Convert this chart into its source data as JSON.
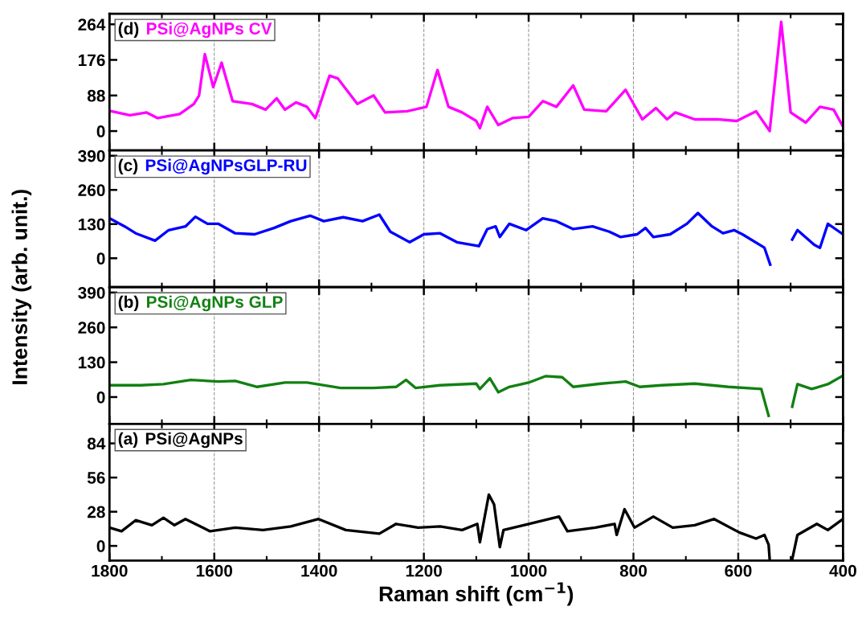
{
  "chart_data": [
    {
      "type": "line",
      "ylabel": "Intensity (arb. unit.)",
      "annotations": [
        "(d)"
      ],
      "xlim": [
        1800,
        400
      ],
      "xticks": [
        1800,
        1600,
        1400,
        1200,
        1000,
        800,
        600,
        400
      ],
      "ylim": [
        -48,
        290
      ],
      "yticks": [
        0,
        88,
        176,
        264
      ],
      "grid": "x",
      "tick_labels": "y",
      "series": [
        {
          "name": "PSi@AgNPs CV",
          "color": "#ff00ff",
          "x": [
            1800,
            1761,
            1729,
            1708,
            1666,
            1639,
            1629,
            1618,
            1602,
            1586,
            1565,
            1528,
            1502,
            1481,
            1465,
            1444,
            1423,
            1407,
            1380,
            1364,
            1327,
            1296,
            1274,
            1232,
            1195,
            1174,
            1153,
            1127,
            1100,
            1093,
            1079,
            1058,
            1031,
            1000,
            973,
            947,
            915,
            894,
            852,
            815,
            783,
            757,
            736,
            720,
            683,
            640,
            603,
            566,
            540,
            518,
            500,
            471,
            444,
            418,
            400
          ],
          "values": [
            50,
            39,
            46,
            32,
            42,
            67,
            88,
            190,
            109,
            169,
            74,
            67,
            53,
            81,
            53,
            71,
            60,
            32,
            137,
            130,
            67,
            88,
            46,
            49,
            60,
            151,
            60,
            46,
            25,
            7,
            60,
            15,
            32,
            35,
            74,
            60,
            113,
            53,
            49,
            102,
            29,
            57,
            29,
            46,
            29,
            29,
            25,
            49,
            0,
            270,
            46,
            21,
            60,
            53,
            11
          ]
        }
      ]
    },
    {
      "type": "line",
      "annotations": [
        "(c)"
      ],
      "xlim": [
        1800,
        400
      ],
      "xticks": [
        1800,
        1600,
        1400,
        1200,
        1000,
        800,
        600,
        400
      ],
      "ylim": [
        -110,
        410
      ],
      "yticks": [
        0,
        130,
        260,
        390
      ],
      "grid": "x",
      "tick_labels": "y",
      "series": [
        {
          "name": "PSi@AgNPsGLP-RU",
          "color": "#0000ff",
          "x": [
            1800,
            1771,
            1750,
            1713,
            1687,
            1655,
            1636,
            1613,
            1592,
            1560,
            1523,
            1486,
            1454,
            1417,
            1391,
            1354,
            1317,
            1285,
            1264,
            1227,
            1200,
            1169,
            1137,
            1095,
            1079,
            1063,
            1055,
            1037,
            1005,
            973,
            947,
            915,
            878,
            846,
            825,
            793,
            777,
            762,
            730,
            698,
            677,
            650,
            629,
            608,
            592,
            550,
            539,
            524,
            510,
            497,
            487,
            455,
            444,
            429,
            400
          ],
          "values": [
            152,
            121,
            95,
            67,
            107,
            121,
            158,
            131,
            131,
            95,
            91,
            115,
            141,
            162,
            141,
            156,
            141,
            166,
            101,
            61,
            91,
            95,
            61,
            46,
            111,
            121,
            81,
            131,
            107,
            152,
            141,
            111,
            121,
            101,
            81,
            91,
            115,
            81,
            91,
            131,
            172,
            121,
            95,
            107,
            91,
            40,
            -24,
            null,
            null,
            71,
            107,
            51,
            40,
            131,
            91
          ]
        }
      ]
    },
    {
      "type": "line",
      "annotations": [
        "(b)"
      ],
      "xlim": [
        1800,
        400
      ],
      "xticks": [
        1800,
        1600,
        1400,
        1200,
        1000,
        800,
        600,
        400
      ],
      "ylim": [
        -100,
        410
      ],
      "yticks": [
        0,
        130,
        260,
        390
      ],
      "grid": "x",
      "tick_labels": "y",
      "series": [
        {
          "name": "PSi@AgNPs GLP",
          "color": "#128012",
          "x": [
            1800,
            1740,
            1697,
            1645,
            1592,
            1560,
            1518,
            1465,
            1423,
            1359,
            1296,
            1253,
            1234,
            1216,
            1169,
            1100,
            1093,
            1074,
            1058,
            1037,
            1000,
            968,
            936,
            915,
            862,
            815,
            788,
            746,
            683,
            619,
            556,
            542,
            528,
            508,
            497,
            487,
            460,
            429,
            400
          ],
          "values": [
            44,
            44,
            48,
            64,
            58,
            60,
            38,
            54,
            54,
            34,
            34,
            38,
            64,
            34,
            44,
            50,
            30,
            70,
            18,
            38,
            54,
            78,
            74,
            38,
            50,
            58,
            38,
            44,
            50,
            38,
            30,
            -70,
            null,
            null,
            -36,
            48,
            30,
            48,
            80
          ]
        }
      ]
    },
    {
      "type": "line",
      "annotations": [
        "(a)"
      ],
      "xlabel": "Raman shift (cm$^{−1}$)",
      "xlim": [
        1800,
        400
      ],
      "xticks": [
        1800,
        1600,
        1400,
        1200,
        1000,
        800,
        600,
        400
      ],
      "ylim": [
        -12,
        100
      ],
      "yticks": [
        0,
        28,
        56,
        84
      ],
      "grid": "x",
      "series": [
        {
          "name": "PSi@AgNPs",
          "color": "#000000",
          "x": [
            1800,
            1777,
            1750,
            1719,
            1697,
            1676,
            1655,
            1608,
            1560,
            1507,
            1454,
            1401,
            1349,
            1285,
            1253,
            1211,
            1169,
            1127,
            1098,
            1093,
            1076,
            1066,
            1055,
            1048,
            1000,
            942,
            926,
            873,
            836,
            832,
            817,
            798,
            762,
            725,
            683,
            646,
            598,
            566,
            550,
            542,
            540,
            524,
            511,
            497,
            487,
            450,
            429,
            400
          ],
          "values": [
            15,
            12,
            21,
            17,
            23,
            17,
            22,
            12,
            15,
            13,
            16,
            22,
            13,
            10,
            18,
            15,
            16,
            13,
            18,
            3,
            42,
            34,
            -1,
            13,
            18,
            24,
            12,
            15,
            18,
            9,
            30,
            15,
            24,
            15,
            17,
            22,
            11,
            6,
            9,
            1,
            -11,
            null,
            null,
            -11,
            9,
            18,
            13,
            22
          ]
        }
      ]
    }
  ]
}
